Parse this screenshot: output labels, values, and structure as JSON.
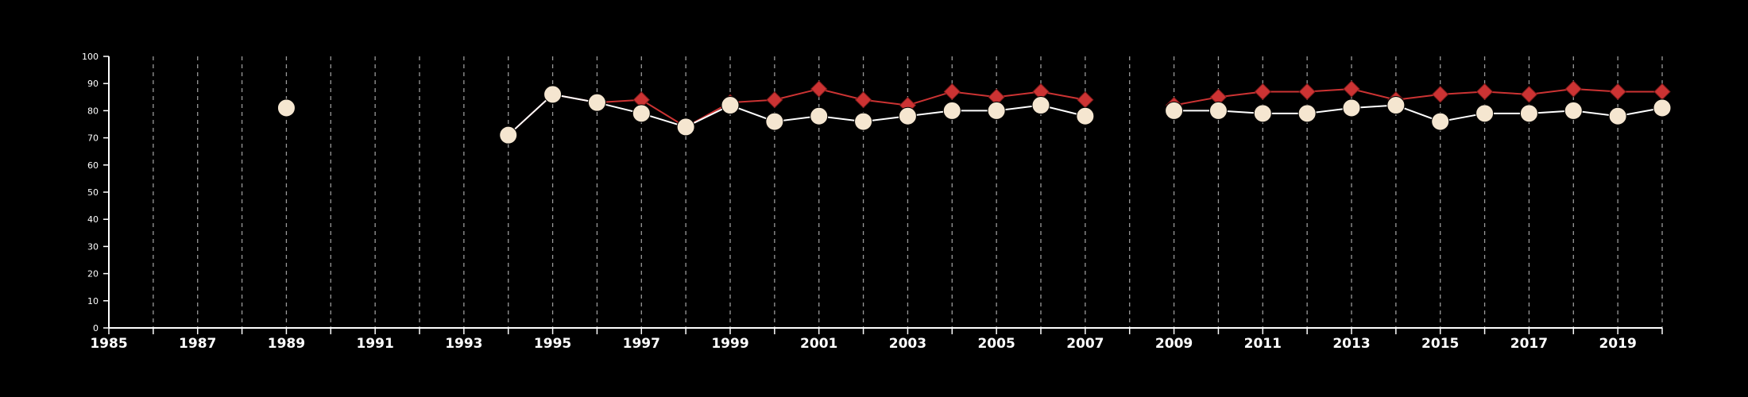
{
  "chart_data": {
    "type": "line",
    "title": "",
    "xlabel": "",
    "ylabel": "",
    "xlim": [
      1985,
      2020
    ],
    "ylim": [
      0,
      100
    ],
    "x_tick_labels": [
      "1985",
      "1987",
      "1989",
      "1991",
      "1993",
      "1995",
      "1997",
      "1999",
      "2001",
      "2003",
      "2005",
      "2007",
      "2009",
      "2011",
      "2013",
      "2015",
      "2017",
      "2019"
    ],
    "y_tick_labels": [
      "0",
      "10",
      "20",
      "30",
      "40",
      "50",
      "60",
      "70",
      "80",
      "90",
      "100"
    ],
    "vertical_grid": "dashed, one per year",
    "horizontal_grid": false,
    "legend": "none",
    "series": [
      {
        "marker": "diamond",
        "color": "#cc3333",
        "points": [
          {
            "x": 1989,
            "y": 81
          },
          {
            "x": 1994,
            "y": 71
          },
          {
            "x": 1995,
            "y": 86
          },
          {
            "x": 1996,
            "y": 83
          },
          {
            "x": 1997,
            "y": 84
          },
          {
            "x": 1998,
            "y": 74
          },
          {
            "x": 1999,
            "y": 83
          },
          {
            "x": 2000,
            "y": 84
          },
          {
            "x": 2001,
            "y": 88
          },
          {
            "x": 2002,
            "y": 84
          },
          {
            "x": 2003,
            "y": 82
          },
          {
            "x": 2004,
            "y": 87
          },
          {
            "x": 2005,
            "y": 85
          },
          {
            "x": 2006,
            "y": 87
          },
          {
            "x": 2007,
            "y": 84
          },
          {
            "x": 2009,
            "y": 82
          },
          {
            "x": 2010,
            "y": 85
          },
          {
            "x": 2011,
            "y": 87
          },
          {
            "x": 2012,
            "y": 87
          },
          {
            "x": 2013,
            "y": 88
          },
          {
            "x": 2014,
            "y": 84
          },
          {
            "x": 2015,
            "y": 86
          },
          {
            "x": 2016,
            "y": 87
          },
          {
            "x": 2017,
            "y": 86
          },
          {
            "x": 2018,
            "y": 88
          },
          {
            "x": 2019,
            "y": 87
          },
          {
            "x": 2020,
            "y": 87
          }
        ]
      },
      {
        "marker": "circle",
        "color": "#f5e6d0",
        "points": [
          {
            "x": 1989,
            "y": 81
          },
          {
            "x": 1994,
            "y": 71
          },
          {
            "x": 1995,
            "y": 86
          },
          {
            "x": 1996,
            "y": 83
          },
          {
            "x": 1997,
            "y": 79
          },
          {
            "x": 1998,
            "y": 74
          },
          {
            "x": 1999,
            "y": 82
          },
          {
            "x": 2000,
            "y": 76
          },
          {
            "x": 2001,
            "y": 78
          },
          {
            "x": 2002,
            "y": 76
          },
          {
            "x": 2003,
            "y": 78
          },
          {
            "x": 2004,
            "y": 80
          },
          {
            "x": 2005,
            "y": 80
          },
          {
            "x": 2006,
            "y": 82
          },
          {
            "x": 2007,
            "y": 78
          },
          {
            "x": 2009,
            "y": 80
          },
          {
            "x": 2010,
            "y": 80
          },
          {
            "x": 2011,
            "y": 79
          },
          {
            "x": 2012,
            "y": 79
          },
          {
            "x": 2013,
            "y": 81
          },
          {
            "x": 2014,
            "y": 82
          },
          {
            "x": 2015,
            "y": 76
          },
          {
            "x": 2016,
            "y": 79
          },
          {
            "x": 2017,
            "y": 79
          },
          {
            "x": 2018,
            "y": 80
          },
          {
            "x": 2019,
            "y": 78
          },
          {
            "x": 2020,
            "y": 81
          }
        ]
      }
    ]
  }
}
